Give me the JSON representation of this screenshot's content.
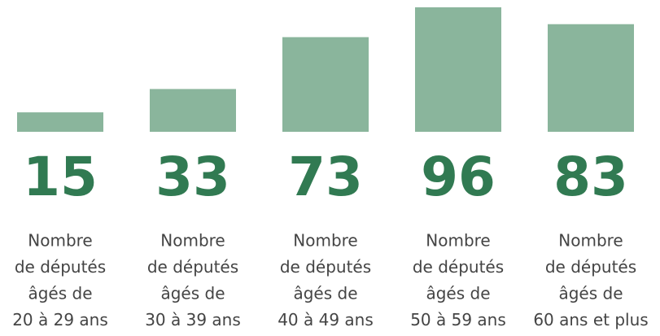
{
  "chart_data": {
    "type": "bar",
    "categories": [
      [
        "Nombre",
        "de députés",
        "âgés de",
        "20 à 29 ans"
      ],
      [
        "Nombre",
        "de députés",
        "âgés de",
        "30 à 39 ans"
      ],
      [
        "Nombre",
        "de députés",
        "âgés de",
        "40 à 49 ans"
      ],
      [
        "Nombre",
        "de députés",
        "âgés de",
        "50 à 59 ans"
      ],
      [
        "Nombre",
        "de députés",
        "âgés de",
        "60 ans et plus"
      ]
    ],
    "values": [
      15,
      33,
      73,
      96,
      83
    ],
    "color": "#8ab59c",
    "label_color": "#317a52"
  }
}
